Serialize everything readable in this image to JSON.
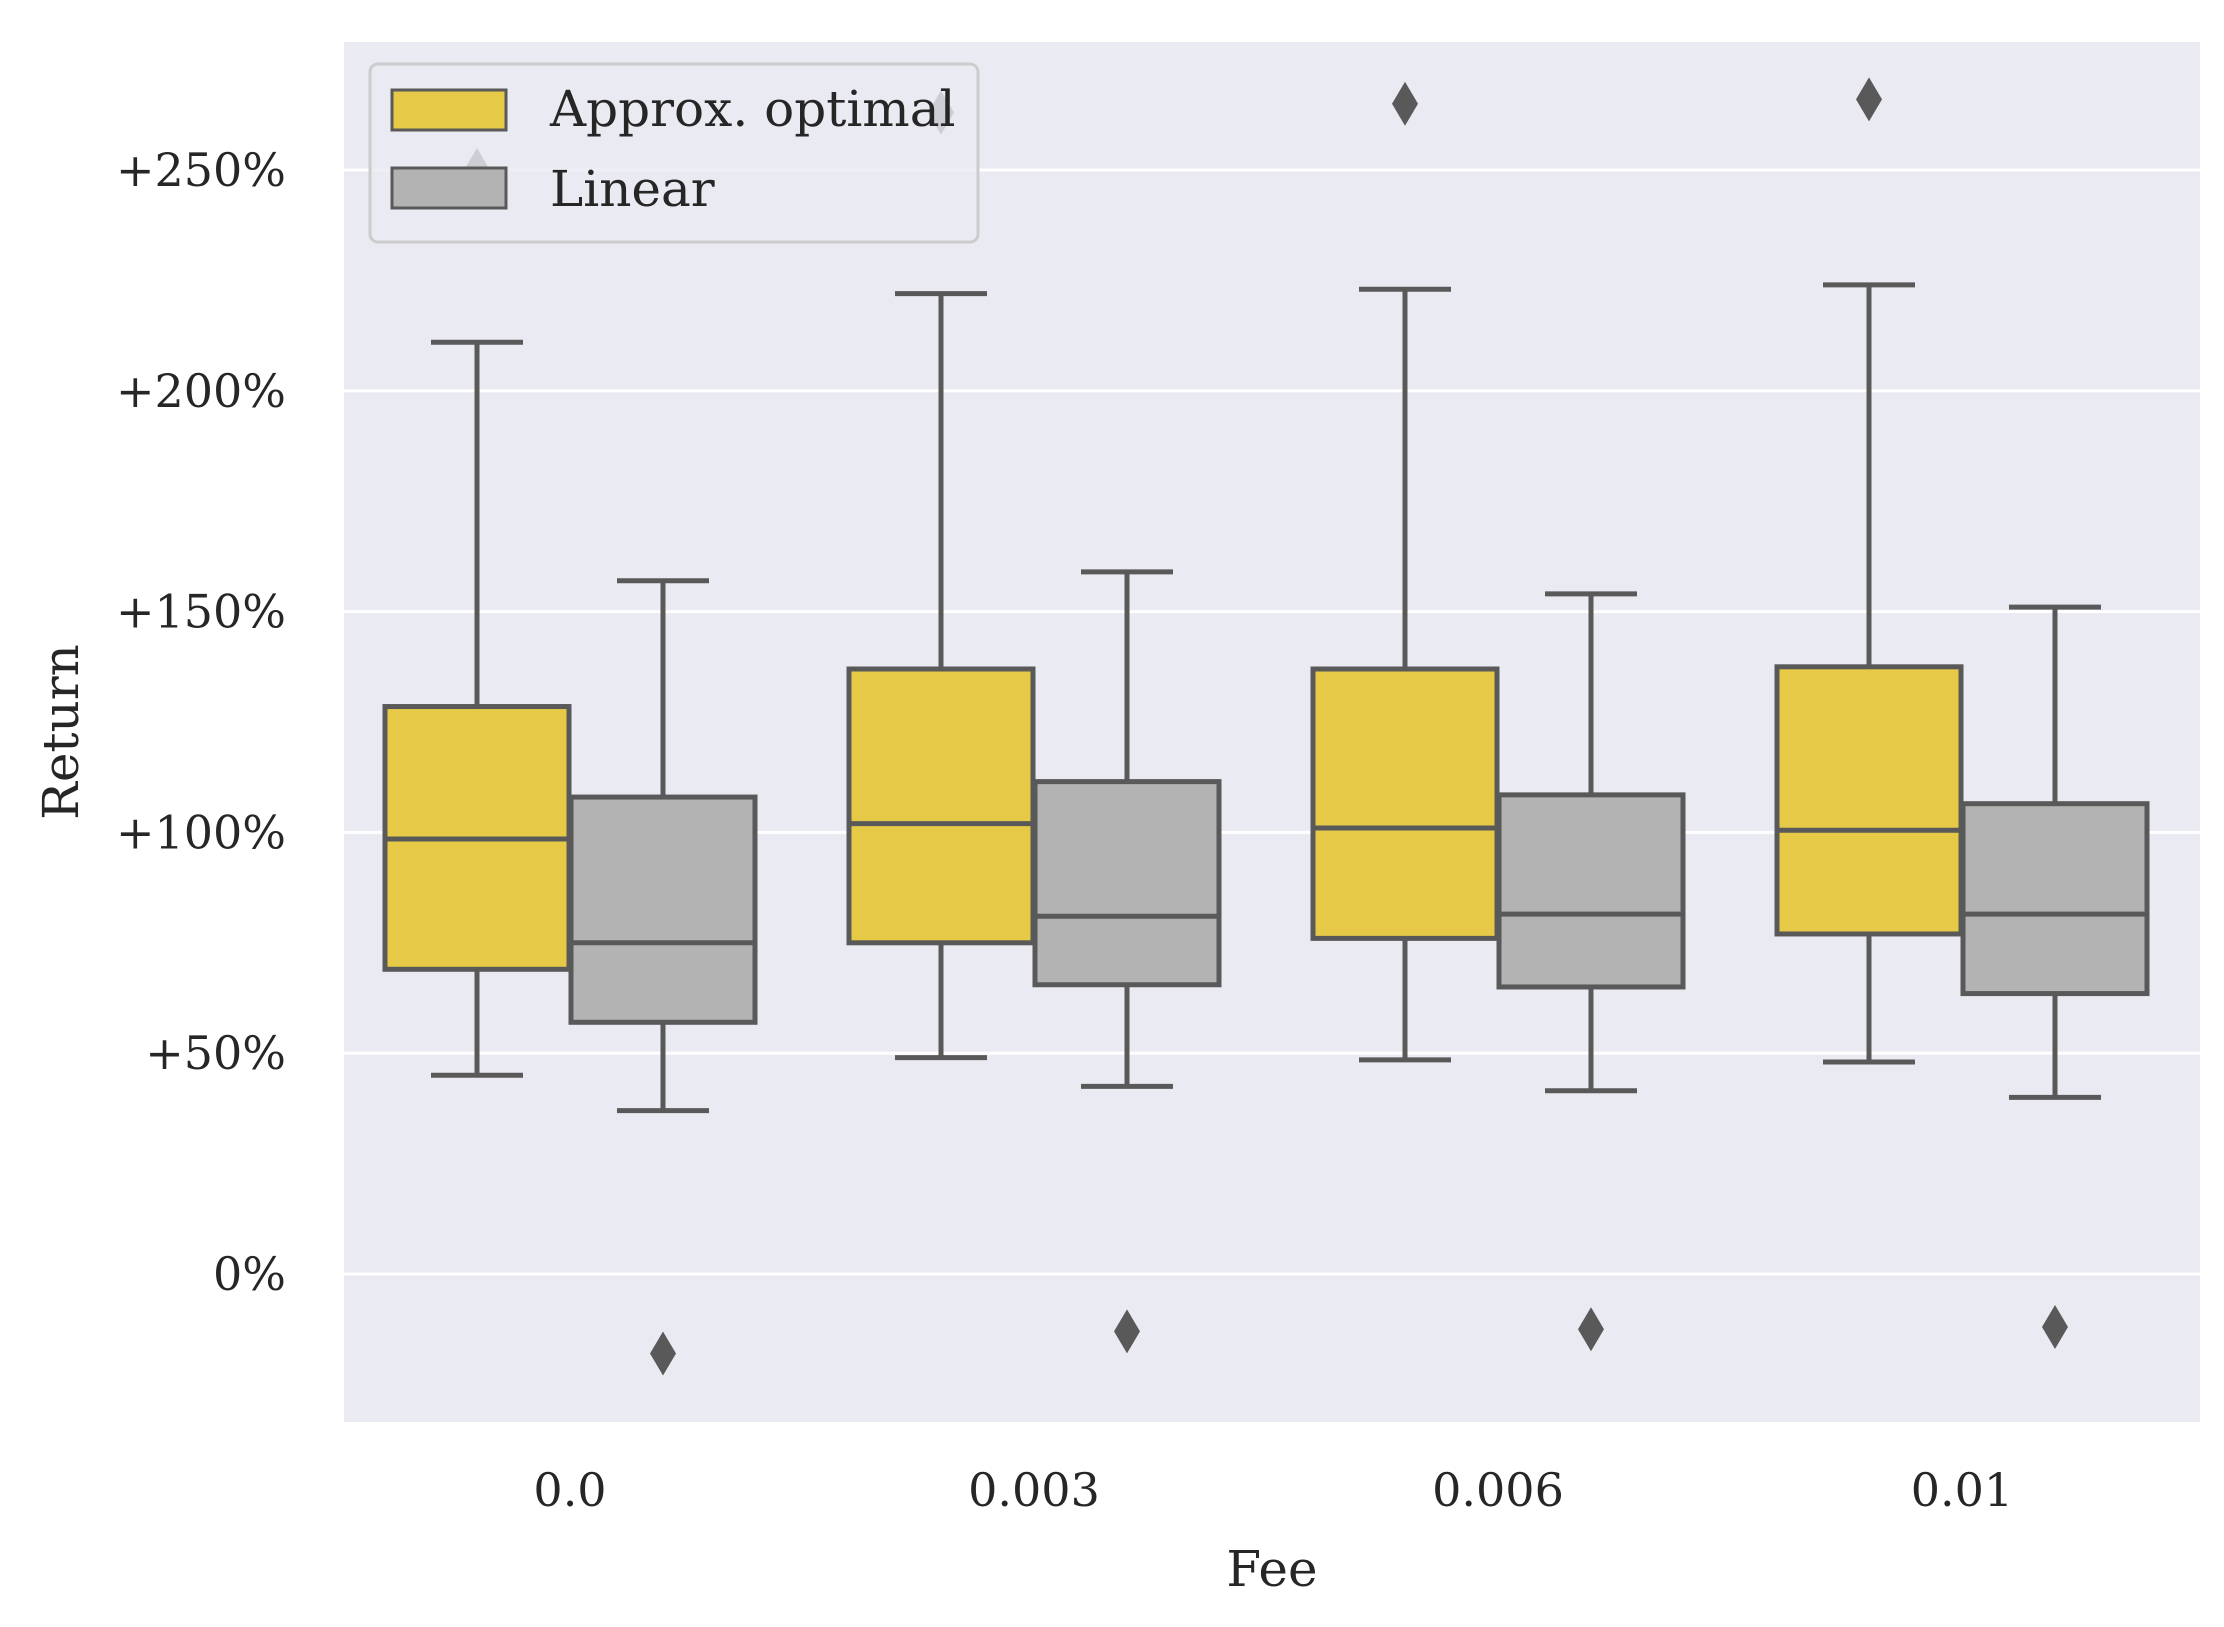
{
  "chart_data": {
    "type": "box",
    "title": "",
    "xlabel": "Fee",
    "ylabel": "Return",
    "categories": [
      "0.0",
      "0.003",
      "0.006",
      "0.01"
    ],
    "ylim": [
      -32,
      280
    ],
    "yticks": [
      0,
      50,
      100,
      150,
      200,
      250
    ],
    "ytick_labels": [
      "0%",
      "+50%",
      "+100%",
      "+150%",
      "+200%",
      "+250%"
    ],
    "grid": "horizontal",
    "legend_position": "top-left",
    "series": [
      {
        "name": "Approx. optimal",
        "color": "#e5c947",
        "boxes": [
          {
            "whisker_low": 45,
            "q1": 69,
            "median": 98.5,
            "q3": 128.5,
            "whisker_high": 211,
            "outliers": [
              250
            ]
          },
          {
            "whisker_low": 49,
            "q1": 75,
            "median": 102,
            "q3": 137,
            "whisker_high": 222,
            "outliers": [
              263
            ]
          },
          {
            "whisker_low": 48.5,
            "q1": 76,
            "median": 101,
            "q3": 137,
            "whisker_high": 223,
            "outliers": [
              265
            ]
          },
          {
            "whisker_low": 48,
            "q1": 77,
            "median": 100.5,
            "q3": 137.5,
            "whisker_high": 224,
            "outliers": [
              266
            ]
          }
        ]
      },
      {
        "name": "Linear",
        "color": "#b3b3b3",
        "boxes": [
          {
            "whisker_low": 37,
            "q1": 57,
            "median": 75,
            "q3": 108,
            "whisker_high": 157,
            "outliers": [
              -18
            ]
          },
          {
            "whisker_low": 42.5,
            "q1": 65.5,
            "median": 81,
            "q3": 111.5,
            "whisker_high": 159,
            "outliers": [
              -13
            ]
          },
          {
            "whisker_low": 41.5,
            "q1": 65,
            "median": 81.5,
            "q3": 108.5,
            "whisker_high": 154,
            "outliers": [
              -12.5
            ]
          },
          {
            "whisker_low": 40,
            "q1": 63.5,
            "median": 81.5,
            "q3": 106.5,
            "whisker_high": 151,
            "outliers": [
              -12
            ]
          }
        ]
      }
    ],
    "colors": {
      "plot_background": "#eaeaf2",
      "grid": "#ffffff",
      "box_edge": "#595959"
    }
  }
}
